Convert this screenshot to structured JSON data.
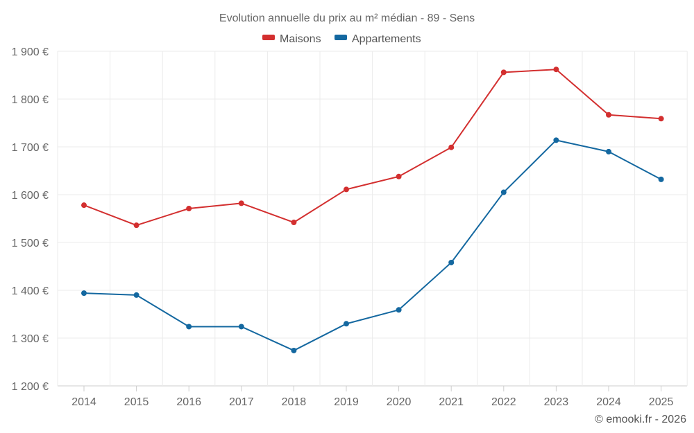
{
  "chart_data": {
    "type": "line",
    "title": "Evolution annuelle du prix au m² médian - 89 - Sens",
    "categories": [
      "2014",
      "2015",
      "2016",
      "2017",
      "2018",
      "2019",
      "2020",
      "2021",
      "2022",
      "2023",
      "2024",
      "2025"
    ],
    "series": [
      {
        "name": "Maisons",
        "color": "#d32f2f",
        "values": [
          1578,
          1536,
          1571,
          1582,
          1542,
          1611,
          1638,
          1699,
          1856,
          1862,
          1767,
          1759
        ]
      },
      {
        "name": "Appartements",
        "color": "#1468a0",
        "values": [
          1394,
          1390,
          1324,
          1324,
          1274,
          1330,
          1359,
          1458,
          1605,
          1714,
          1690,
          1632
        ]
      }
    ],
    "ylim": [
      1200,
      1900
    ],
    "ytick_values": [
      1200,
      1300,
      1400,
      1500,
      1600,
      1700,
      1800,
      1900
    ],
    "ytick_labels": [
      "1 200 €",
      "1 300 €",
      "1 400 €",
      "1 500 €",
      "1 600 €",
      "1 700 €",
      "1 800 €",
      "1 900 €"
    ],
    "xlabel": "",
    "ylabel": "",
    "grid": true,
    "legend_position": "top-center"
  },
  "credit": "© emooki.fr - 2026"
}
